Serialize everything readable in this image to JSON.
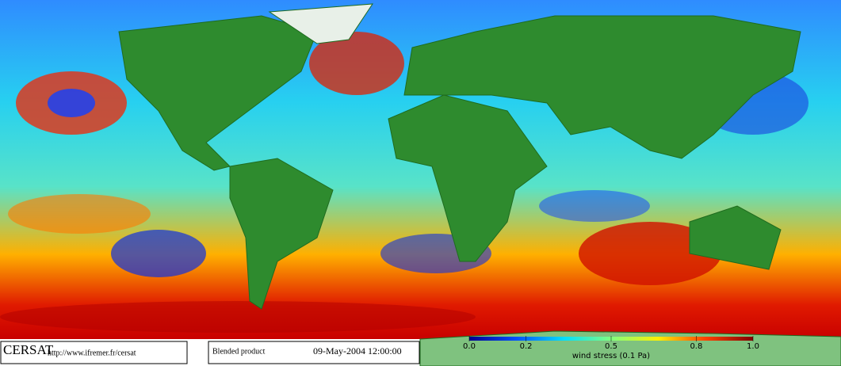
{
  "footer": {
    "logo": "CERSAT",
    "url": "http://www.ifremer.fr/cersat",
    "product": "Blended product",
    "date": "09-May-2004 12:00:00"
  },
  "colorbar": {
    "label": "wind stress (0.1 Pa)",
    "lim": [
      0,
      1
    ],
    "ticks": [
      {
        "value": 0,
        "label": "0.0"
      },
      0.2,
      0.5,
      0.8,
      {
        "value": 1,
        "label": "1.0"
      }
    ],
    "colors": [
      "#00008f",
      "#0050ff",
      "#00dfff",
      "#7fff7f",
      "#ffef00",
      "#ff4000",
      "#800000"
    ]
  }
}
